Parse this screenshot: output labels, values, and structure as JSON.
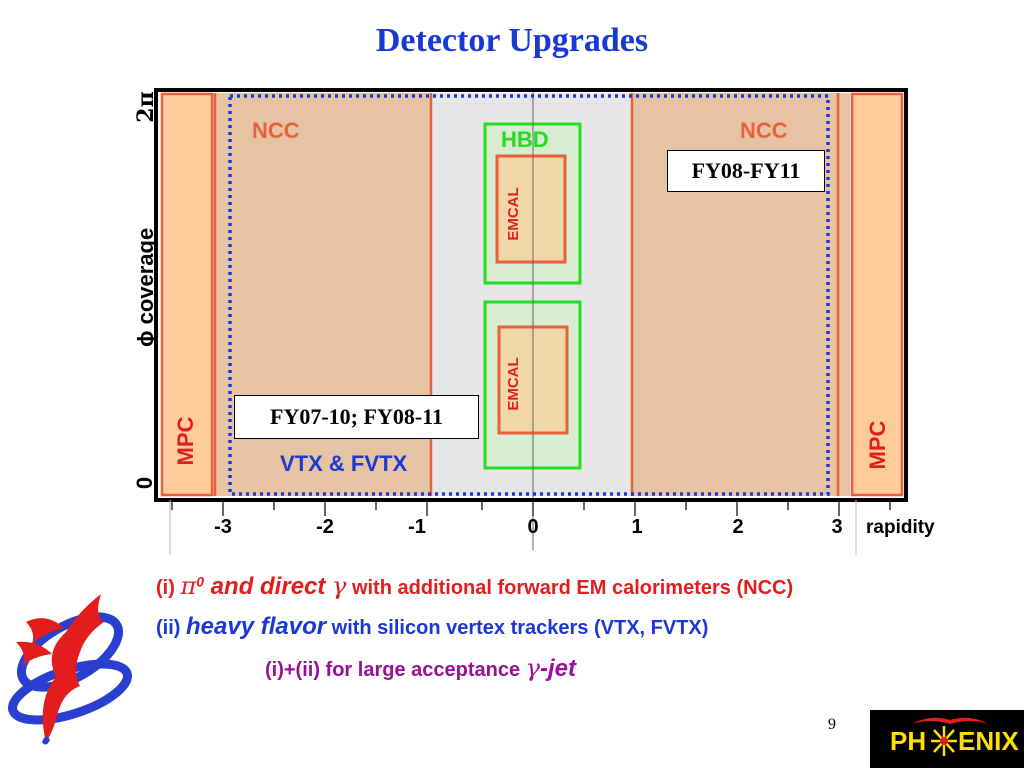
{
  "title": "Detector Upgrades",
  "axis": {
    "ylabel": "ϕ coverage",
    "y_top": "2π",
    "y_bottom": "0",
    "xlabel": "rapidity",
    "x_ticks": [
      "-3",
      "-2",
      "-1",
      "0",
      "1",
      "2",
      "3"
    ]
  },
  "regions": {
    "ncc_left": "NCC",
    "ncc_right": "NCC",
    "hbd": "HBD",
    "emcal_top": "EMCAL",
    "emcal_bottom": "EMCAL",
    "mpc_left": "MPC",
    "mpc_right": "MPC",
    "vtx": "VTX & FVTX"
  },
  "timelines": {
    "right": "FY08-FY11",
    "left": "FY07-10; FY08-11"
  },
  "bullets": {
    "line1": {
      "prefix": "(i) ",
      "pi": "π",
      "sup": "0",
      "mid": " and direct ",
      "gamma": "γ",
      "tail": " with additional forward EM calorimeters (NCC)"
    },
    "line2": {
      "prefix": "(ii) ",
      "emph": "heavy flavor",
      "tail": " with silicon vertex trackers (VTX, FVTX)"
    },
    "line3": {
      "prefix": "(i)+(ii) for large acceptance ",
      "gamma": "γ",
      "tail": "-jet"
    }
  },
  "page_number": "9",
  "logo_text": {
    "left": "PH",
    "right": "ENIX"
  },
  "colors": {
    "title": "#1a38d6",
    "ncc_fill": "#e6c3a2",
    "mpc_fill": "#fdcc9a",
    "detector_outline": "#e8603c",
    "hbd": "#22dd22",
    "emcal_fill": "#f2d8a8",
    "vtx": "#1a38d6",
    "red_text": "#e31d1d",
    "purple_text": "#9a0f9a"
  }
}
